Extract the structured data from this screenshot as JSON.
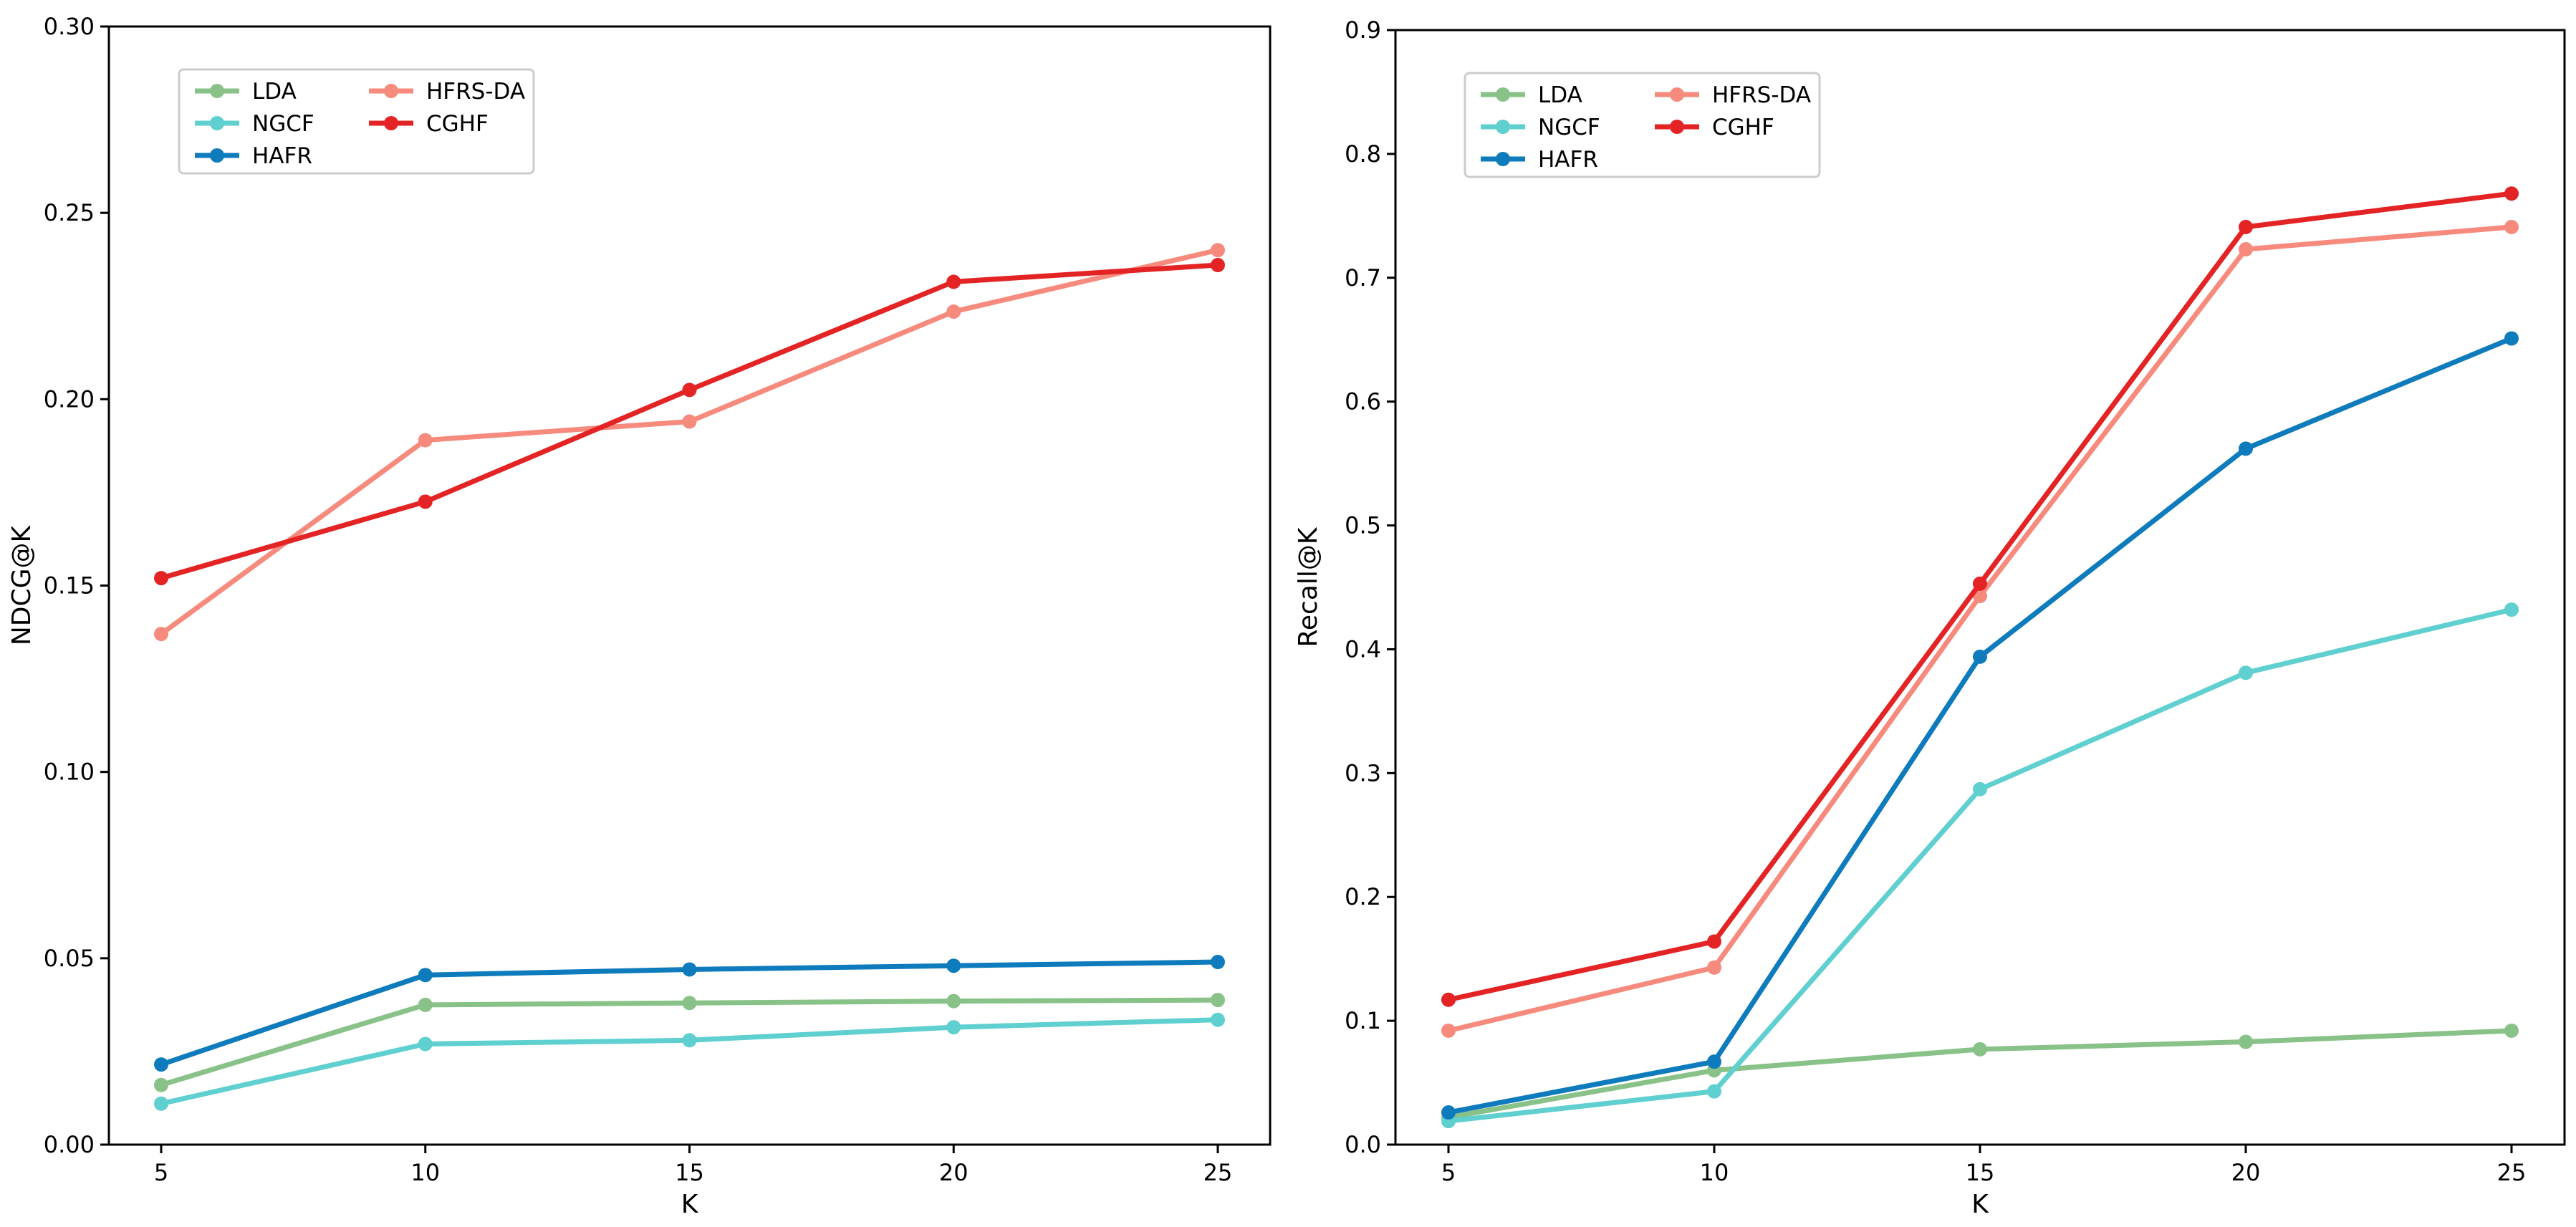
{
  "chart_data": [
    {
      "type": "line",
      "title": "",
      "xlabel": "K",
      "ylabel": "NDCG@K",
      "x": [
        5,
        10,
        15,
        20,
        25
      ],
      "xticks": [
        "5",
        "10",
        "15",
        "20",
        "25"
      ],
      "ylim": [
        0,
        0.3
      ],
      "yticks": [
        "0.00",
        "0.05",
        "0.10",
        "0.15",
        "0.20",
        "0.25",
        "0.30"
      ],
      "legend_location": "upper-left",
      "series": [
        {
          "name": "LDA",
          "color": "#88c288",
          "values": [
            0.016,
            0.0375,
            0.038,
            0.0385,
            0.0388
          ]
        },
        {
          "name": "NGCF",
          "color": "#5fcfcf",
          "values": [
            0.011,
            0.027,
            0.028,
            0.0315,
            0.0335
          ]
        },
        {
          "name": "HAFR",
          "color": "#0e7bbd",
          "values": [
            0.0215,
            0.0455,
            0.047,
            0.048,
            0.049
          ]
        },
        {
          "name": "HFRS-DA",
          "color": "#f68a7d",
          "values": [
            0.137,
            0.189,
            0.194,
            0.2235,
            0.24
          ]
        },
        {
          "name": "CGHF",
          "color": "#e32324",
          "values": [
            0.152,
            0.1725,
            0.2025,
            0.2315,
            0.236
          ]
        }
      ]
    },
    {
      "type": "line",
      "title": "",
      "xlabel": "K",
      "ylabel": "Recall@K",
      "x": [
        5,
        10,
        15,
        20,
        25
      ],
      "xticks": [
        "5",
        "10",
        "15",
        "20",
        "25"
      ],
      "ylim": [
        0,
        0.9
      ],
      "yticks": [
        "0.0",
        "0.1",
        "0.2",
        "0.3",
        "0.4",
        "0.5",
        "0.6",
        "0.7",
        "0.8",
        "0.9"
      ],
      "legend_location": "upper-left",
      "series": [
        {
          "name": "LDA",
          "color": "#88c288",
          "values": [
            0.022,
            0.06,
            0.077,
            0.083,
            0.092
          ]
        },
        {
          "name": "NGCF",
          "color": "#5fcfcf",
          "values": [
            0.019,
            0.043,
            0.287,
            0.381,
            0.432
          ]
        },
        {
          "name": "HAFR",
          "color": "#0e7bbd",
          "values": [
            0.026,
            0.067,
            0.394,
            0.562,
            0.651
          ]
        },
        {
          "name": "HFRS-DA",
          "color": "#f68a7d",
          "values": [
            0.092,
            0.143,
            0.443,
            0.723,
            0.741
          ]
        },
        {
          "name": "CGHF",
          "color": "#e32324",
          "values": [
            0.117,
            0.164,
            0.453,
            0.741,
            0.768
          ]
        }
      ]
    }
  ]
}
